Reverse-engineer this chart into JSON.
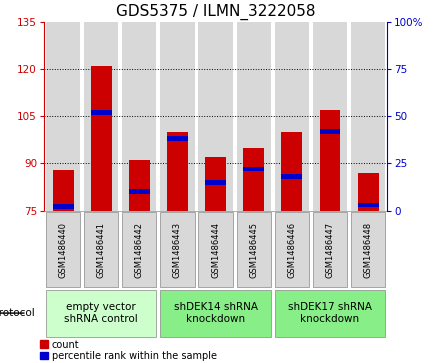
{
  "title": "GDS5375 / ILMN_3222058",
  "samples": [
    "GSM1486440",
    "GSM1486441",
    "GSM1486442",
    "GSM1486443",
    "GSM1486444",
    "GSM1486445",
    "GSM1486446",
    "GSM1486447",
    "GSM1486448"
  ],
  "counts": [
    88,
    121,
    91,
    100,
    92,
    95,
    100,
    107,
    87
  ],
  "percentiles": [
    2,
    52,
    10,
    38,
    15,
    22,
    18,
    42,
    3
  ],
  "ymin": 75,
  "ymax": 135,
  "yticks": [
    75,
    90,
    105,
    120,
    135
  ],
  "y2min": 0,
  "y2max": 100,
  "y2ticks": [
    0,
    25,
    50,
    75,
    100
  ],
  "bar_color": "#cc0000",
  "percentile_color": "#0000cc",
  "bar_width": 0.55,
  "protocol_defs": [
    {
      "start": 0,
      "end": 2,
      "color": "#ccffcc",
      "label": "empty vector\nshRNA control"
    },
    {
      "start": 3,
      "end": 5,
      "color": "#88ee88",
      "label": "shDEK14 shRNA\nknockdown"
    },
    {
      "start": 6,
      "end": 8,
      "color": "#88ee88",
      "label": "shDEK17 shRNA\nknockdown"
    }
  ],
  "bar_bg_color": "#d8d8d8",
  "plot_bg_color": "#ffffff",
  "title_fontsize": 11,
  "tick_fontsize": 7.5,
  "sample_fontsize": 6.0,
  "legend_fontsize": 7.0,
  "protocol_fontsize": 7.5
}
